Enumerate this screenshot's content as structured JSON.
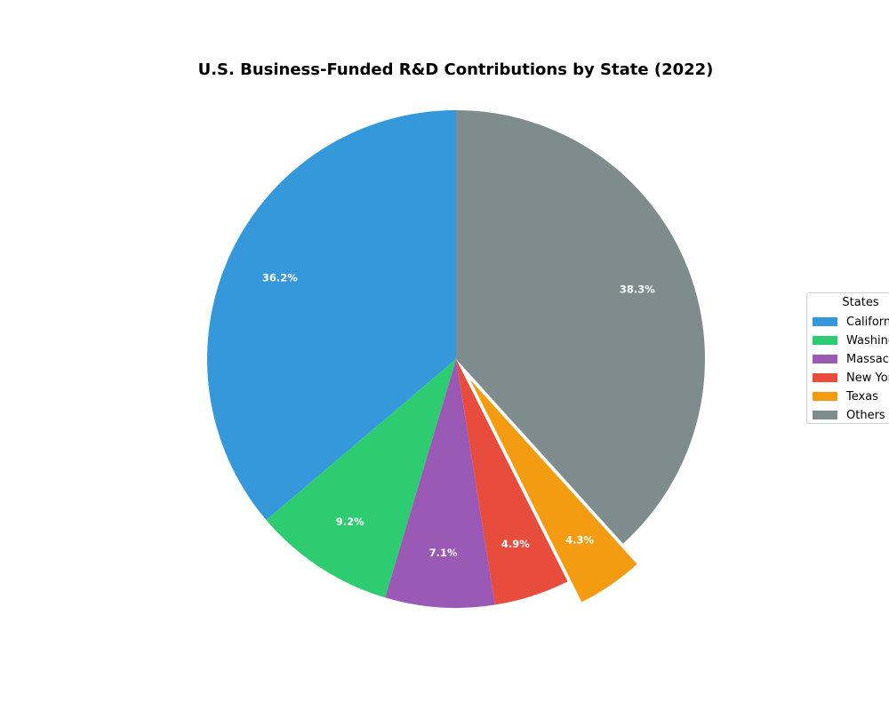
{
  "chart_data": {
    "type": "pie",
    "title": "U.S. Business-Funded R&D Contributions by State (2022)",
    "slices": [
      {
        "label": "California",
        "value": 36.2,
        "pct_label": "36.2%",
        "color": "#3498db",
        "explode": false
      },
      {
        "label": "Washington",
        "value": 9.2,
        "pct_label": "9.2%",
        "color": "#2ecc71",
        "explode": false
      },
      {
        "label": "Massachusetts",
        "value": 7.1,
        "pct_label": "7.1%",
        "color": "#9b59b6",
        "explode": false
      },
      {
        "label": "New York",
        "value": 4.9,
        "pct_label": "4.9%",
        "color": "#e74c3c",
        "explode": false
      },
      {
        "label": "Texas",
        "value": 4.3,
        "pct_label": "4.3%",
        "color": "#f39c12",
        "explode": true
      },
      {
        "label": "Others",
        "value": 38.3,
        "pct_label": "38.3%",
        "color": "#7f8c8d",
        "explode": false
      }
    ],
    "legend": {
      "title": "States",
      "placement": "center-right"
    },
    "start_angle_deg": 90,
    "direction": "counterclockwise"
  }
}
